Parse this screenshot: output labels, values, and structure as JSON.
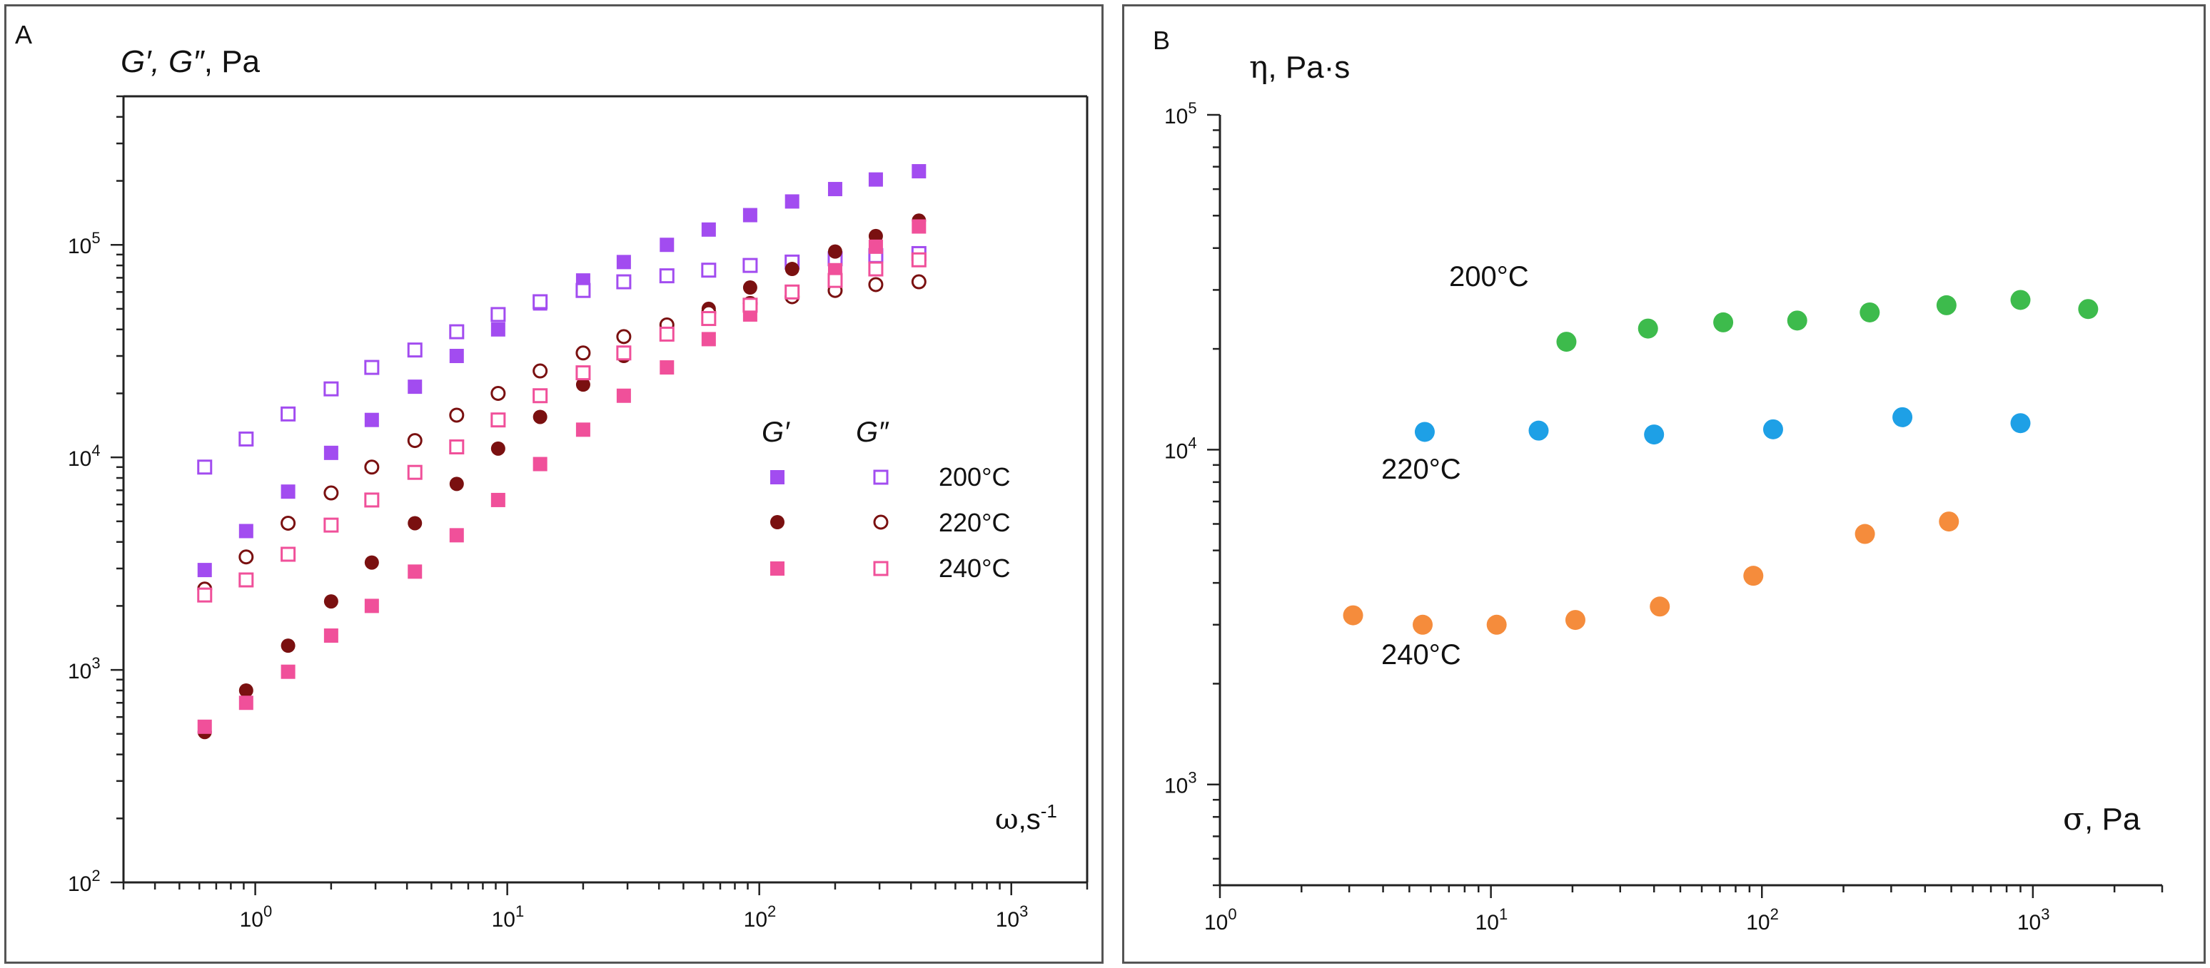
{
  "colors": {
    "purple": "#a24cf0",
    "brown": "#7a1010",
    "pink": "#f0509a",
    "green": "#3dbb4c",
    "blue": "#1ea0e6",
    "orange": "#f58c3c",
    "axis": "#222222"
  },
  "chart_data": [
    {
      "panel_label": "A",
      "type": "scatter",
      "title": "",
      "xscale": "log",
      "yscale": "log",
      "xlim": [
        0.3,
        2000
      ],
      "ylim": [
        100,
        500000
      ],
      "ylabel": {
        "a": "G′, ",
        "b": "G″",
        "c": ", Pa"
      },
      "xlabel": {
        "a": "ω",
        "b": ",s",
        "c": "-1"
      },
      "x_ticks": [
        {
          "b": "10",
          "e": "0"
        },
        {
          "b": "10",
          "e": "1"
        },
        {
          "b": "10",
          "e": "2"
        },
        {
          "b": "10",
          "e": "3"
        }
      ],
      "y_ticks": [
        {
          "b": "10",
          "e": "2"
        },
        {
          "b": "10",
          "e": "3"
        },
        {
          "b": "10",
          "e": "4"
        },
        {
          "b": "10",
          "e": "5"
        }
      ],
      "legend": {
        "placement": "center-right",
        "header_gp": "G′",
        "header_gpp": "G″",
        "entries": [
          "200°C",
          "220°C",
          "240°C"
        ]
      },
      "x": [
        0.63,
        0.92,
        1.35,
        2.0,
        2.9,
        4.3,
        6.3,
        9.2,
        13.5,
        20,
        29,
        43,
        63,
        92,
        135,
        200,
        290,
        430
      ],
      "series": [
        {
          "name": "G′ 200°C",
          "marker": "square",
          "filled": true,
          "color": "purple",
          "values": [
            2950,
            4500,
            6900,
            10500,
            15000,
            21500,
            30000,
            40000,
            53000,
            68000,
            83000,
            100000,
            118000,
            138000,
            160000,
            183000,
            203000,
            222000
          ]
        },
        {
          "name": "G″ 200°C",
          "marker": "square",
          "filled": false,
          "color": "purple",
          "values": [
            9000,
            12200,
            16000,
            21000,
            26500,
            32000,
            39000,
            47000,
            54000,
            61000,
            67000,
            71500,
            76000,
            80000,
            83000,
            86000,
            89000,
            91000
          ]
        },
        {
          "name": "G′ 220°C",
          "marker": "circle",
          "filled": true,
          "color": "brown",
          "values": [
            510,
            800,
            1300,
            2100,
            3200,
            4900,
            7500,
            11000,
            15500,
            22000,
            30000,
            39000,
            50000,
            63000,
            77000,
            93000,
            110000,
            130000
          ]
        },
        {
          "name": "G″ 220°C",
          "marker": "circle",
          "filled": false,
          "color": "brown",
          "values": [
            2400,
            3400,
            4900,
            6800,
            9000,
            12000,
            15800,
            20000,
            25500,
            31000,
            37000,
            42000,
            48000,
            53000,
            57000,
            61000,
            65000,
            67000
          ]
        },
        {
          "name": "G′ 240°C",
          "marker": "square",
          "filled": true,
          "color": "pink",
          "values": [
            540,
            700,
            980,
            1450,
            2000,
            2900,
            4300,
            6300,
            9300,
            13500,
            19500,
            26500,
            36000,
            47000,
            60000,
            76000,
            98000,
            122000
          ]
        },
        {
          "name": "G″ 240°C",
          "marker": "square",
          "filled": false,
          "color": "pink",
          "values": [
            2250,
            2650,
            3500,
            4800,
            6300,
            8500,
            11200,
            15000,
            19500,
            25000,
            31000,
            38000,
            45000,
            52000,
            60000,
            68000,
            77000,
            85000
          ]
        }
      ]
    },
    {
      "panel_label": "B",
      "type": "scatter",
      "title": "",
      "xscale": "log",
      "yscale": "log",
      "xlim": [
        1,
        3000
      ],
      "ylim": [
        500,
        100000
      ],
      "ylabel": {
        "a": "η",
        "b": ",  Pa·s"
      },
      "xlabel": {
        "a": "σ",
        "b": ", Pa"
      },
      "x_ticks": [
        {
          "b": "10",
          "e": "0"
        },
        {
          "b": "10",
          "e": "1"
        },
        {
          "b": "10",
          "e": "2"
        },
        {
          "b": "10",
          "e": "3"
        }
      ],
      "y_ticks": [
        {
          "b": "10",
          "e": "3"
        },
        {
          "b": "10",
          "e": "4"
        },
        {
          "b": "10",
          "e": "5"
        }
      ],
      "series": [
        {
          "name": "200°C",
          "color": "green",
          "x": [
            19,
            38,
            72,
            135,
            250,
            480,
            900,
            1600
          ],
          "values": [
            21000,
            23000,
            24000,
            24300,
            25700,
            27000,
            28000,
            26300
          ]
        },
        {
          "name": "220°C",
          "color": "blue",
          "x": [
            5.7,
            15,
            40,
            110,
            330,
            900
          ],
          "values": [
            11300,
            11400,
            11100,
            11500,
            12500,
            12000
          ]
        },
        {
          "name": "240°C",
          "color": "orange",
          "x": [
            3.1,
            5.6,
            10.5,
            20.5,
            42,
            93,
            240,
            490
          ],
          "values": [
            3200,
            3000,
            3000,
            3100,
            3400,
            4200,
            5600,
            6100
          ]
        }
      ]
    }
  ]
}
